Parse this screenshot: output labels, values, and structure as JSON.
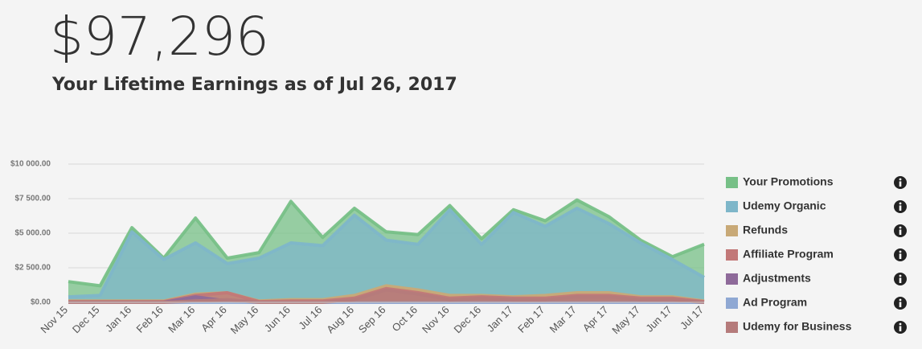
{
  "chart_data": {
    "type": "area",
    "headline": "$97,296",
    "title": "Your Lifetime Earnings as of Jul 26, 2017",
    "categories": [
      "Nov 15",
      "Dec 15",
      "Jan 16",
      "Feb 16",
      "Mar 16",
      "Apr 16",
      "May 16",
      "Jun 16",
      "Jul 16",
      "Aug 16",
      "Sep 16",
      "Oct 16",
      "Nov 16",
      "Dec 16",
      "Jan 17",
      "Feb 17",
      "Mar 17",
      "Apr 17",
      "May 17",
      "Jun 17",
      "Jul 17"
    ],
    "ylim": [
      0,
      10000
    ],
    "yticks": [
      {
        "value": 0,
        "label": "$0.00"
      },
      {
        "value": 2500,
        "label": "$2 500.00"
      },
      {
        "value": 5000,
        "label": "$5 000.00"
      },
      {
        "value": 7500,
        "label": "$7 500.00"
      },
      {
        "value": 10000,
        "label": "$10 000.00"
      }
    ],
    "grid": true,
    "legend": "right",
    "series": [
      {
        "name": "Your Promotions",
        "color": "#77c087",
        "values": [
          1500,
          1200,
          5400,
          3200,
          6100,
          3200,
          3600,
          7300,
          4700,
          6800,
          5100,
          4900,
          7000,
          4600,
          6700,
          5900,
          7400,
          6200,
          4500,
          3300,
          4200
        ]
      },
      {
        "name": "Udemy Organic",
        "color": "#7eb6c9",
        "values": [
          400,
          500,
          5100,
          3100,
          4300,
          2800,
          3200,
          4300,
          4100,
          6300,
          4500,
          4200,
          6700,
          4200,
          6500,
          5500,
          6800,
          5700,
          4300,
          3100,
          1800
        ]
      },
      {
        "name": "Refunds",
        "color": "#c8a977",
        "values": [
          100,
          100,
          100,
          100,
          600,
          700,
          100,
          200,
          200,
          500,
          1200,
          900,
          500,
          500,
          400,
          500,
          700,
          700,
          400,
          400,
          100
        ]
      },
      {
        "name": "Affiliate Program",
        "color": "#c27878",
        "values": [
          50,
          50,
          50,
          50,
          500,
          700,
          50,
          100,
          100,
          300,
          1000,
          700,
          300,
          400,
          300,
          300,
          500,
          500,
          300,
          300,
          50
        ]
      },
      {
        "name": "Adjustments",
        "color": "#8e6a9a",
        "values": [
          0,
          0,
          0,
          0,
          400,
          100,
          0,
          0,
          0,
          0,
          0,
          0,
          0,
          0,
          0,
          0,
          0,
          0,
          0,
          0,
          0
        ]
      },
      {
        "name": "Ad Program",
        "color": "#8fa8d3",
        "values": [
          0,
          0,
          0,
          0,
          0,
          0,
          0,
          0,
          0,
          0,
          0,
          0,
          0,
          0,
          0,
          0,
          0,
          0,
          0,
          0,
          0
        ]
      },
      {
        "name": "Udemy for Business",
        "color": "#b57b7b",
        "values": [
          0,
          0,
          0,
          0,
          100,
          200,
          0,
          0,
          0,
          200,
          900,
          600,
          200,
          300,
          200,
          200,
          400,
          400,
          200,
          200,
          0
        ]
      }
    ]
  }
}
